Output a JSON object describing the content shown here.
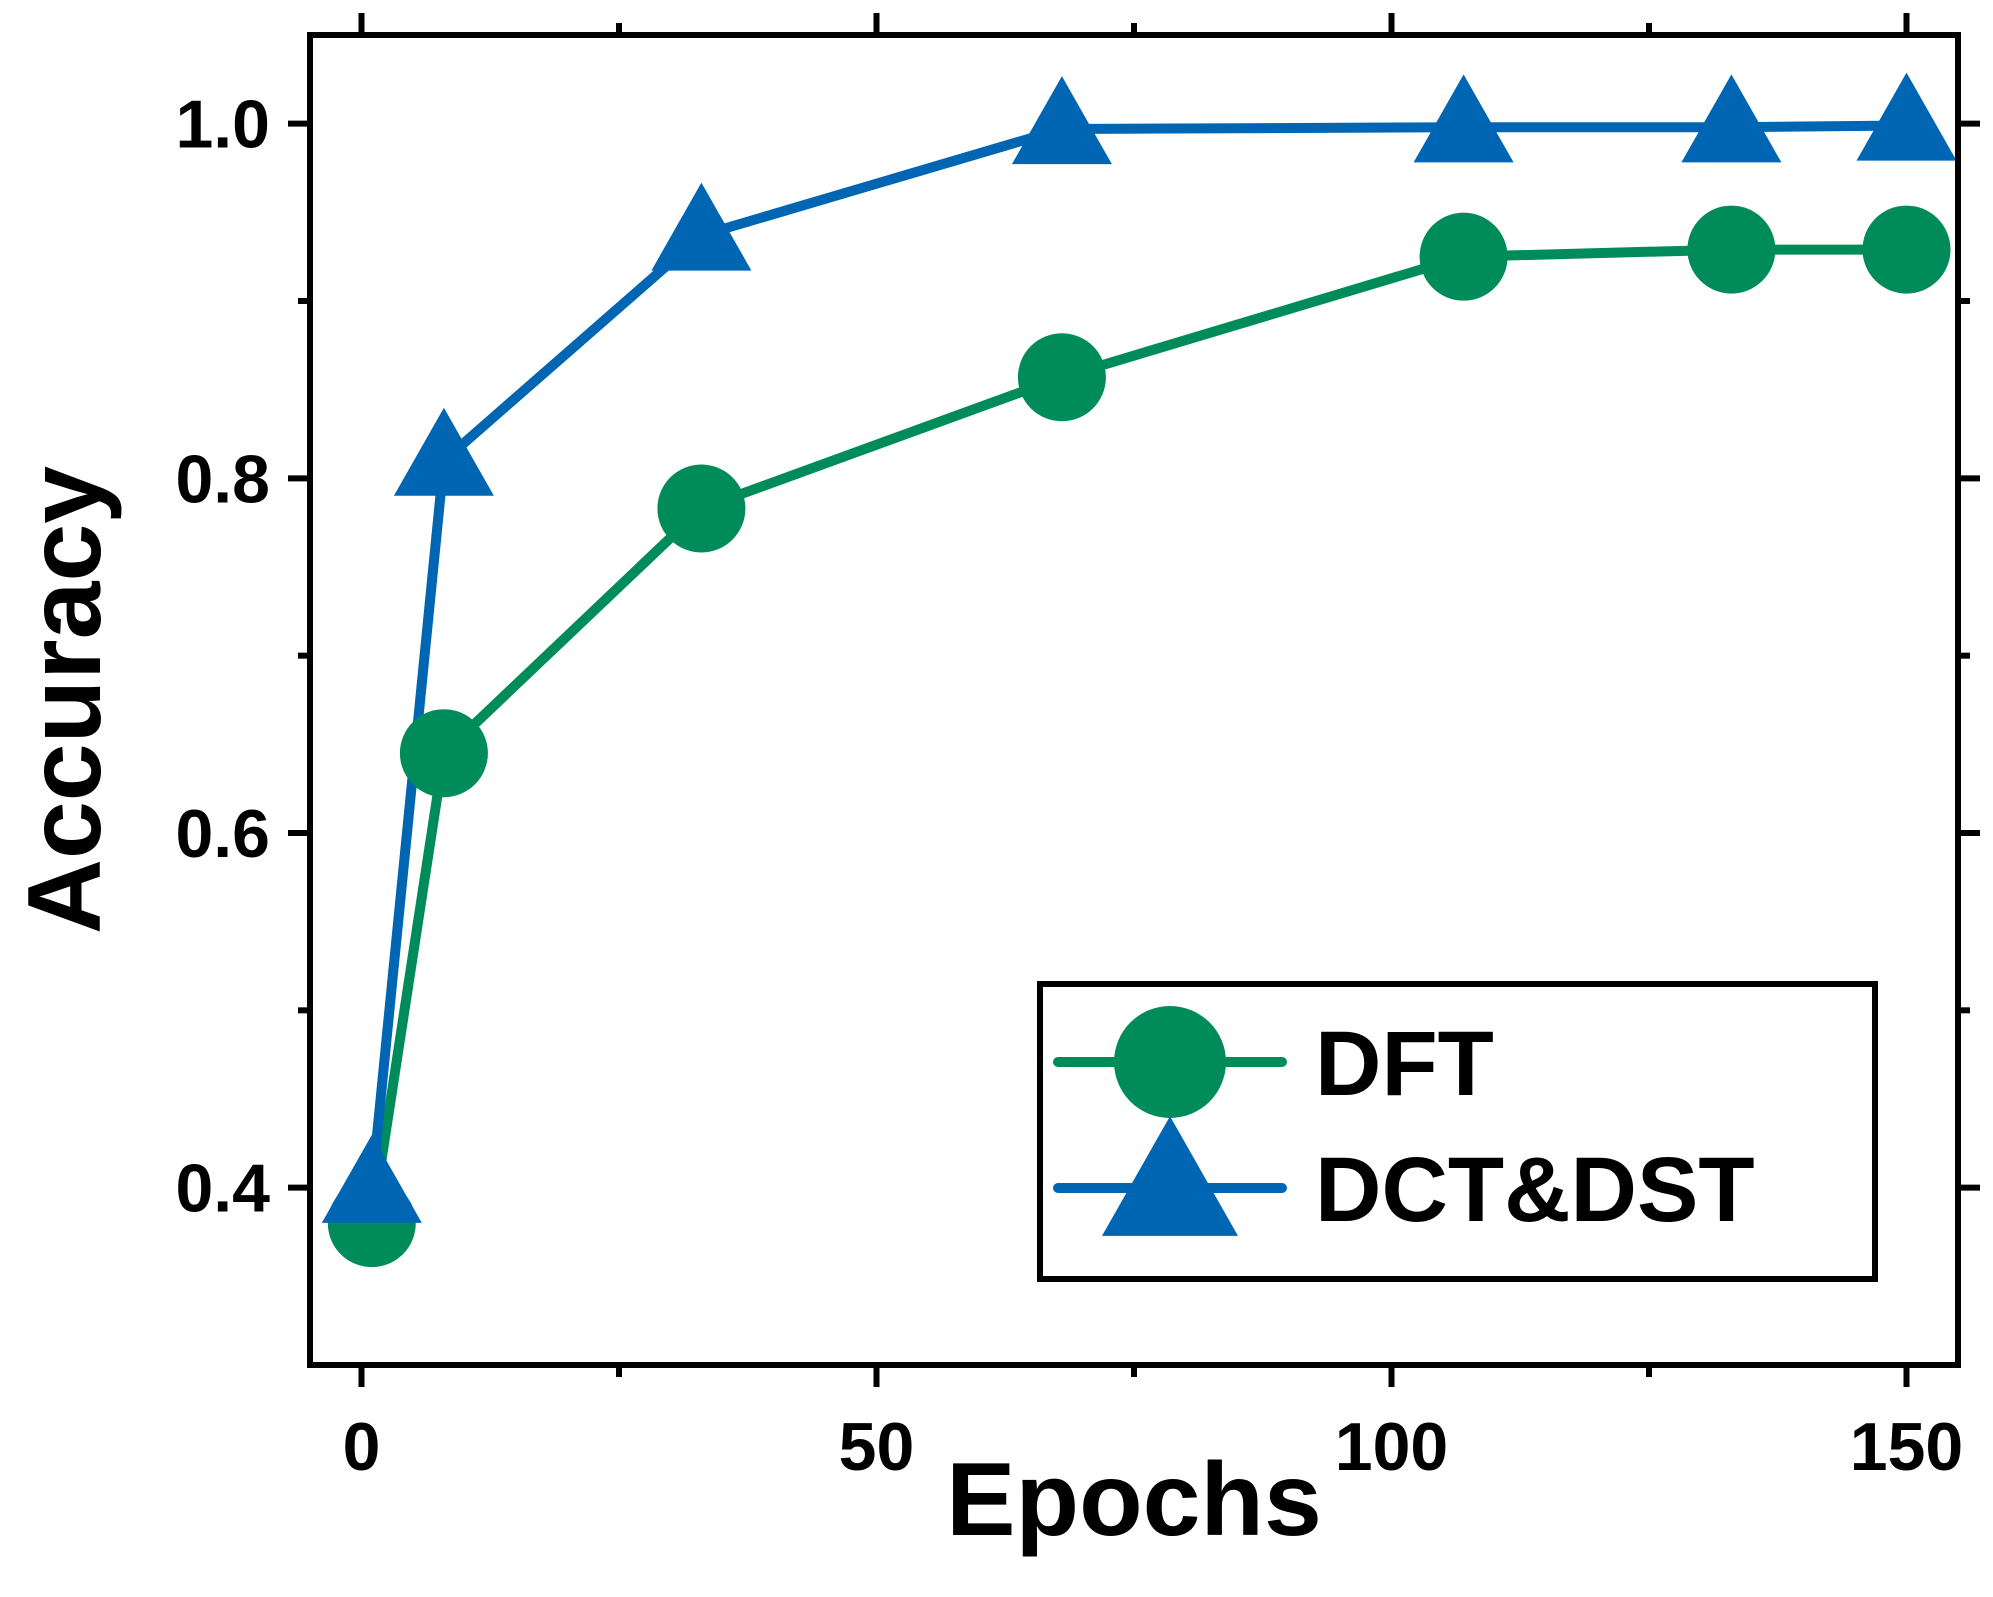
{
  "chart_data": {
    "type": "line",
    "title": "",
    "xlabel": "Epochs",
    "ylabel": "Accuracy",
    "xlim": [
      -5,
      155
    ],
    "ylim": [
      0.3,
      1.05
    ],
    "x_major_ticks": [
      0,
      50,
      100,
      150
    ],
    "x_tick_labels": [
      "0",
      "50",
      "100",
      "150"
    ],
    "x_minor_ticks": [
      25,
      75,
      125
    ],
    "y_major_ticks": [
      0.4,
      0.6,
      0.8,
      1.0
    ],
    "y_tick_labels": [
      "0.4",
      "0.6",
      "0.8",
      "1.0"
    ],
    "y_minor_ticks": [
      0.5,
      0.7,
      0.9
    ],
    "grid": false,
    "legend_position": "bottom-right",
    "series": [
      {
        "name": "DFT",
        "color": "#008C5A",
        "marker": "circle",
        "x": [
          1,
          8,
          33,
          68,
          107,
          133,
          150
        ],
        "y": [
          0.38,
          0.645,
          0.783,
          0.857,
          0.925,
          0.929,
          0.929
        ]
      },
      {
        "name": "DCT&DST",
        "color": "#0066B3",
        "marker": "triangle",
        "x": [
          1,
          8,
          33,
          68,
          107,
          133,
          150
        ],
        "y": [
          0.4,
          0.81,
          0.937,
          0.997,
          0.998,
          0.998,
          0.999
        ]
      }
    ]
  }
}
